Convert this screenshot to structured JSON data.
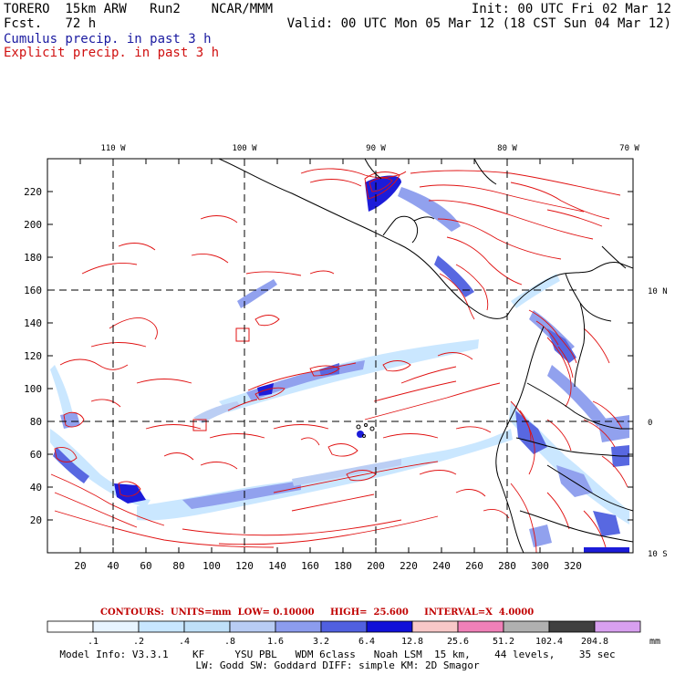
{
  "header": {
    "model_line": "TORERO  15km ARW   Run2    NCAR/MMM",
    "fcst_label": "Fcst.",
    "fcst_value": "72 h",
    "init": "Init: 00 UTC Fri 02 Mar 12",
    "valid": "Valid: 00 UTC Mon 05 Mar 12 (18 CST Sun 04 Mar 12)",
    "field_blue": "Cumulus precip. in past 3 h",
    "field_red": "Explicit precip. in past 3 h"
  },
  "map": {
    "lon_labels": [
      "110 W",
      "100 W",
      "90 W",
      "80 W",
      "70 W"
    ],
    "lat_labels": [
      "10 N",
      "0",
      "10 S"
    ],
    "x_ticks": [
      "20",
      "40",
      "60",
      "80",
      "100",
      "120",
      "140",
      "160",
      "180",
      "200",
      "220",
      "240",
      "260",
      "280",
      "300",
      "320"
    ],
    "y_ticks": [
      "20",
      "40",
      "60",
      "80",
      "100",
      "120",
      "140",
      "160",
      "180",
      "200",
      "220"
    ],
    "colors": {
      "contour": "#e01010",
      "coast": "#000000",
      "grid": "#000000"
    }
  },
  "contours_info": "CONTOURS:  UNITS=mm  LOW= 0.10000     HIGH=  25.600     INTERVAL=X  4.0000",
  "colorbar": {
    "labels": [
      ".1",
      ".2",
      ".4",
      ".8",
      "1.6",
      "3.2",
      "6.4",
      "12.8",
      "25.6",
      "51.2",
      "102.4",
      "204.8"
    ],
    "unit": "mm",
    "colors": [
      "#ffffff",
      "#e8f4ff",
      "#c8e6ff",
      "#bfe0f8",
      "#b8ccf4",
      "#8c9cee",
      "#5060e0",
      "#1010d8",
      "#f8c8c8",
      "#f080b8",
      "#b0b0b0",
      "#404040",
      "#d8a0f0"
    ]
  },
  "model_info": {
    "line1": "Model Info: V3.3.1    KF     YSU PBL   WDM 6class   Noah LSM  15 km,    44 levels,    35 sec",
    "line2": "LW: Godd SW: Goddard DIFF: simple KM: 2D Smagor"
  }
}
